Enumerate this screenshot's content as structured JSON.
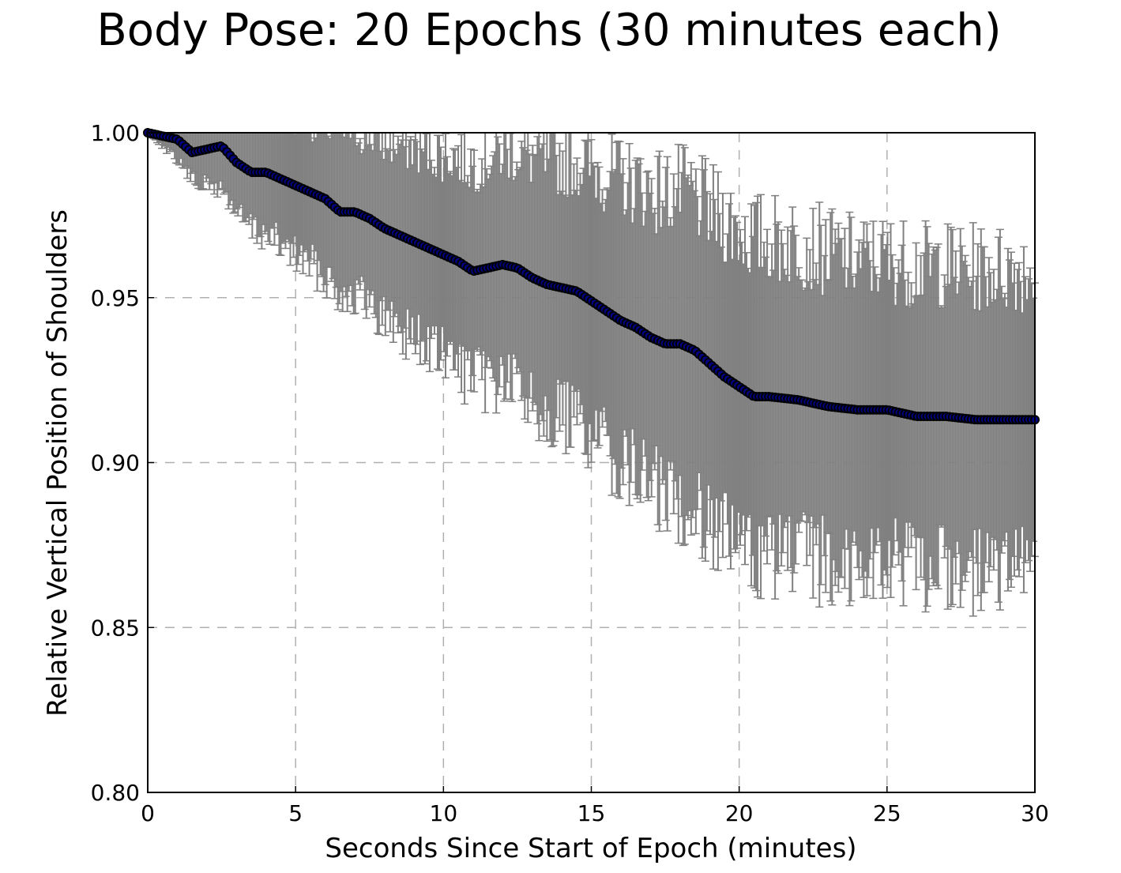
{
  "chart_data": {
    "type": "line",
    "title": "Body Pose: 20 Epochs (30 minutes each)",
    "xlabel": "Seconds Since Start of Epoch (minutes)",
    "ylabel": "Relative Vertical Position of Shoulders",
    "xlim": [
      0,
      30
    ],
    "ylim": [
      0.8,
      1.0
    ],
    "xticks": [
      0,
      5,
      10,
      15,
      20,
      25,
      30
    ],
    "xtick_labels": [
      "0",
      "5",
      "10",
      "15",
      "20",
      "25",
      "30"
    ],
    "yticks": [
      0.8,
      0.85,
      0.9,
      0.95,
      1.0
    ],
    "ytick_labels": [
      "0.80",
      "0.85",
      "0.90",
      "0.95",
      "1.00"
    ],
    "grid": true,
    "series": [
      {
        "marker": "circle",
        "color": "#000080",
        "errorbar_color": "#808080",
        "x": [
          0,
          0.5,
          1,
          1.5,
          2,
          2.5,
          3,
          3.5,
          4,
          4.5,
          5,
          5.5,
          6,
          6.5,
          7,
          7.5,
          8,
          8.5,
          9,
          9.5,
          10,
          10.5,
          11,
          11.5,
          12,
          12.5,
          13,
          13.5,
          14,
          14.5,
          15,
          15.5,
          16,
          16.5,
          17,
          17.5,
          18,
          18.5,
          19,
          19.5,
          20,
          20.5,
          21,
          22,
          23,
          24,
          25,
          26,
          27,
          28,
          29,
          30
        ],
        "y": [
          1.0,
          0.999,
          0.998,
          0.994,
          0.995,
          0.996,
          0.991,
          0.988,
          0.988,
          0.986,
          0.984,
          0.982,
          0.98,
          0.976,
          0.976,
          0.974,
          0.971,
          0.969,
          0.967,
          0.965,
          0.963,
          0.961,
          0.958,
          0.959,
          0.96,
          0.959,
          0.956,
          0.954,
          0.953,
          0.952,
          0.949,
          0.946,
          0.943,
          0.941,
          0.938,
          0.936,
          0.936,
          0.934,
          0.93,
          0.926,
          0.923,
          0.92,
          0.92,
          0.919,
          0.917,
          0.916,
          0.916,
          0.914,
          0.914,
          0.913,
          0.913,
          0.913
        ],
        "error": [
          0.0,
          0.003,
          0.006,
          0.008,
          0.011,
          0.013,
          0.015,
          0.017,
          0.019,
          0.02,
          0.021,
          0.022,
          0.023,
          0.024,
          0.025,
          0.026,
          0.027,
          0.028,
          0.029,
          0.03,
          0.031,
          0.032,
          0.033,
          0.034,
          0.035,
          0.036,
          0.037,
          0.038,
          0.039,
          0.04,
          0.041,
          0.042,
          0.043,
          0.044,
          0.045,
          0.046,
          0.047,
          0.047,
          0.047,
          0.048,
          0.048,
          0.048,
          0.048,
          0.048,
          0.047,
          0.046,
          0.046,
          0.046,
          0.046,
          0.046,
          0.046,
          0.046
        ]
      }
    ]
  }
}
